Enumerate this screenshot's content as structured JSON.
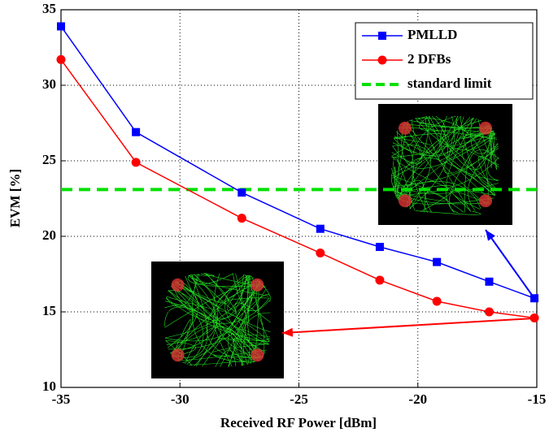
{
  "chart_data": {
    "type": "line",
    "x_label": "Received RF Power [dBm]",
    "y_label": "EVM [%]",
    "x": [
      -35,
      -31.85,
      -27.4,
      -24.1,
      -21.6,
      -19.2,
      -17.0,
      -15.1
    ],
    "series": [
      {
        "name": "PMLLD",
        "color": "#0000ff",
        "marker": "square",
        "values": [
          33.9,
          26.9,
          22.9,
          20.5,
          19.3,
          18.3,
          17.0,
          15.9
        ]
      },
      {
        "name": "2 DFBs",
        "color": "#ff0000",
        "marker": "circle",
        "values": [
          31.7,
          24.9,
          21.2,
          18.9,
          17.1,
          15.7,
          15.0,
          14.6
        ]
      }
    ],
    "hlines": [
      {
        "name": "standard limit",
        "value": 23.1,
        "color": "#00e000",
        "style": "dashed"
      }
    ],
    "xlim": [
      -35,
      -15
    ],
    "ylim": [
      10,
      35
    ],
    "xticks": [
      -35,
      -30,
      -25,
      -20,
      -15
    ],
    "yticks": [
      10,
      15,
      20,
      25,
      30,
      35
    ],
    "grid": true,
    "legend": "upper right"
  }
}
